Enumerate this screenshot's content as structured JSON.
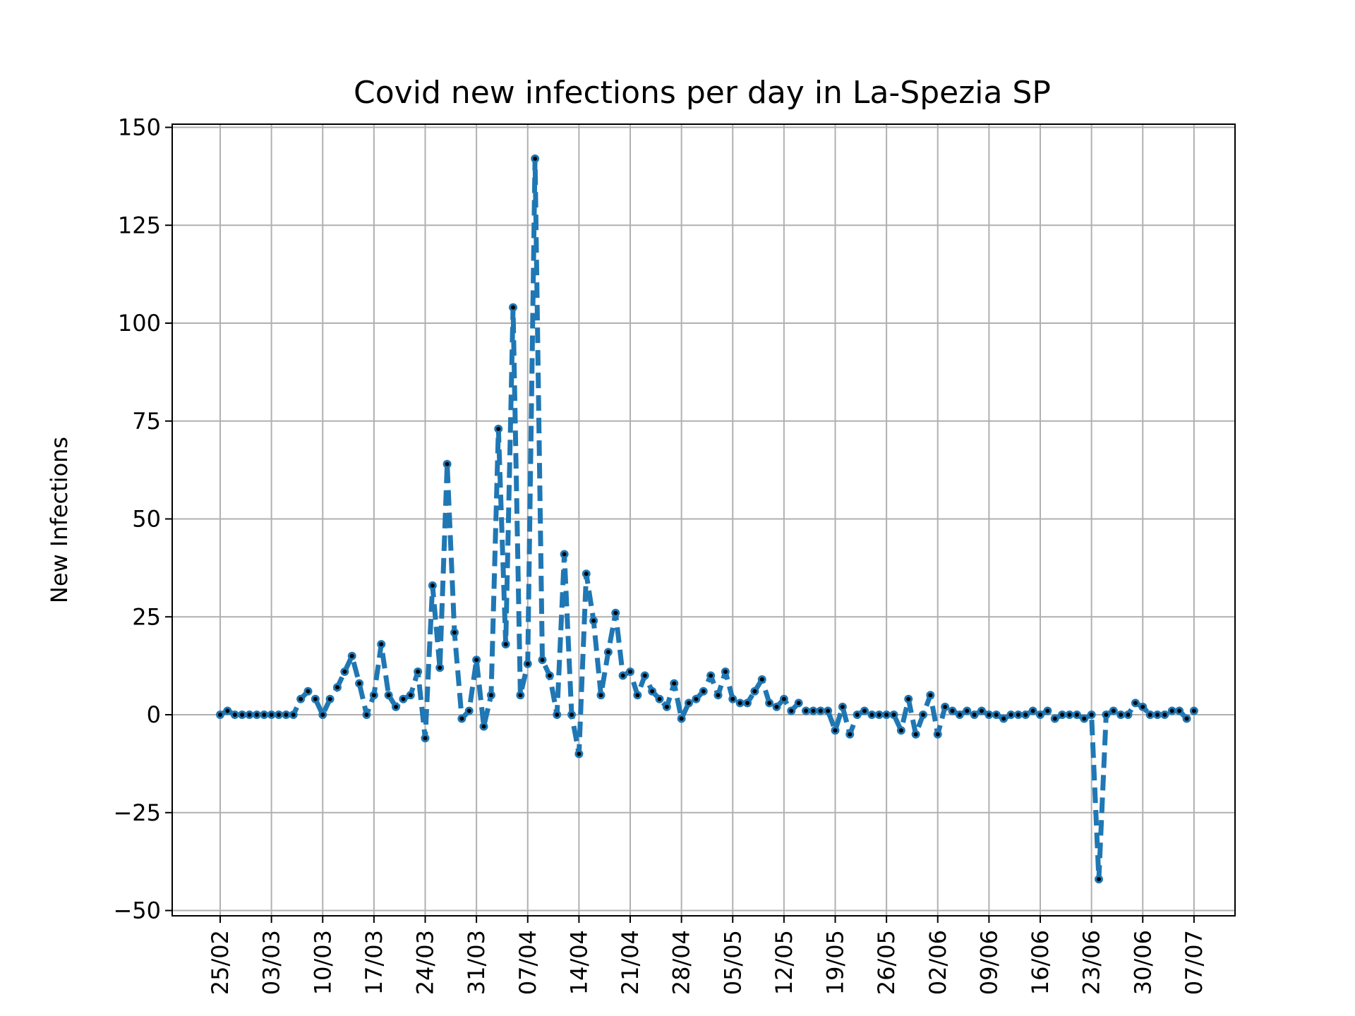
{
  "chart_data": {
    "type": "line",
    "title": "Covid new infections per day in La-Spezia SP",
    "xlabel": "",
    "ylabel": "New Infections",
    "ylim": [
      -50,
      150
    ],
    "yticks": [
      150,
      125,
      100,
      75,
      50,
      25,
      0,
      -25,
      -50
    ],
    "ytick_labels": [
      "150",
      "125",
      "100",
      "75",
      "50",
      "25",
      "0",
      "−25",
      "−50"
    ],
    "xtick_labels": [
      "25/02",
      "03/03",
      "10/03",
      "17/03",
      "24/03",
      "31/03",
      "07/04",
      "14/04",
      "21/04",
      "28/04",
      "05/05",
      "12/05",
      "19/05",
      "26/05",
      "02/06",
      "09/06",
      "16/06",
      "23/06",
      "30/06",
      "07/07"
    ],
    "start_date": "2020-02-25",
    "grid": true,
    "line_color": "#1f77b4",
    "marker_color": "#000000",
    "line_style": "dashed",
    "values": [
      0,
      1,
      0,
      0,
      0,
      0,
      0,
      0,
      0,
      0,
      0,
      4,
      6,
      4,
      0,
      4,
      7,
      11,
      15,
      8,
      0,
      5,
      18,
      5,
      2,
      4,
      5,
      11,
      -6,
      33,
      12,
      64,
      21,
      -1,
      1,
      14,
      -3,
      5,
      73,
      18,
      104,
      5,
      13,
      142,
      14,
      10,
      0,
      41,
      0,
      -10,
      36,
      24,
      5,
      16,
      26,
      10,
      11,
      5,
      10,
      6,
      4,
      2,
      8,
      -1,
      3,
      4,
      6,
      10,
      5,
      11,
      4,
      3,
      3,
      6,
      9,
      3,
      2,
      4,
      1,
      3,
      1,
      1,
      1,
      1,
      -4,
      2,
      -5,
      0,
      1,
      0,
      0,
      0,
      0,
      -4,
      4,
      -5,
      0,
      5,
      -5,
      2,
      1,
      0,
      1,
      0,
      1,
      0,
      0,
      -1,
      0,
      0,
      0,
      1,
      0,
      1,
      -1,
      0,
      0,
      0,
      -1,
      0,
      -42,
      0,
      1,
      0,
      0,
      3,
      2,
      0,
      0,
      0,
      1,
      1,
      -1,
      1
    ]
  }
}
